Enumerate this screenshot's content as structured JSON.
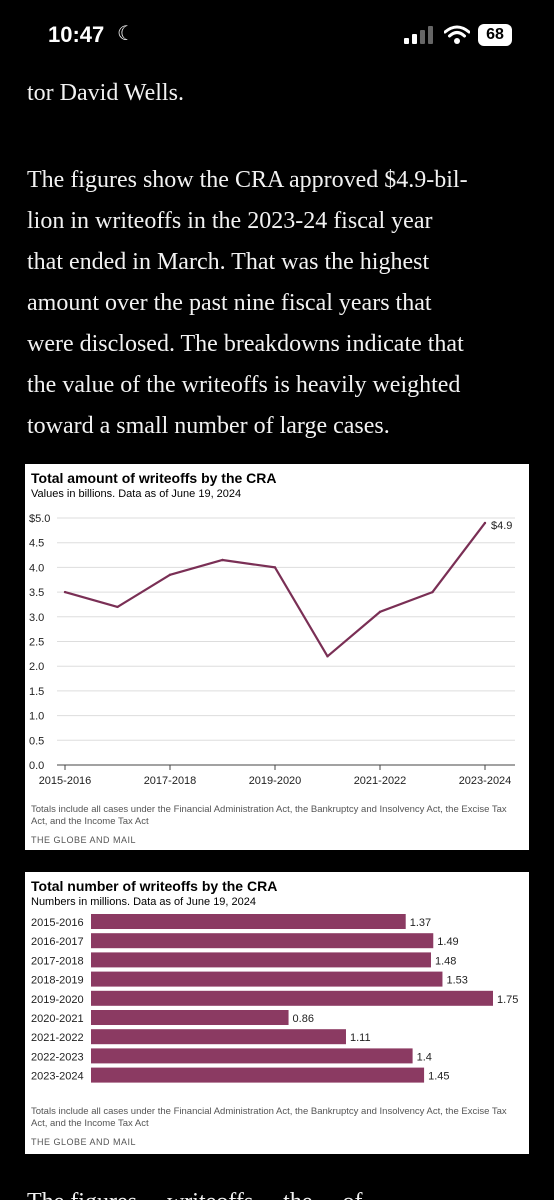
{
  "status": {
    "time": "10:47",
    "battery": "68"
  },
  "article": {
    "p1": "tor David Wells.",
    "p2_lines": [
      "The figures show the CRA approved $4.9-bil-",
      "lion in writeoffs in the 2023-24 fiscal year",
      "that ended in March. That was the highest",
      "amount over the past nine fiscal years that",
      "were disclosed. The breakdowns indicate that",
      "the value of the writeoffs is heavily weighted",
      "toward a small number of large cases."
    ],
    "next_line": "The figures ... writeoffs ... the ... of"
  },
  "chart_data": [
    {
      "type": "line",
      "title": "Total amount of writeoffs by the CRA",
      "subtitle": "Values in billions. Data as of June 19, 2024",
      "x": [
        "2015-2016",
        "2016-2017",
        "2017-2018",
        "2018-2019",
        "2019-2020",
        "2020-2021",
        "2021-2022",
        "2022-2023",
        "2023-2024"
      ],
      "x_tick_labels": [
        "2015-2016",
        "2017-2018",
        "2019-2020",
        "2021-2022",
        "2023-2024"
      ],
      "y_tick_labels": [
        "$5.0",
        "4.5",
        "4.0",
        "3.5",
        "3.0",
        "2.5",
        "2.0",
        "1.5",
        "1.0",
        "0.5",
        "0.0"
      ],
      "series": [
        {
          "values": [
            3.5,
            3.2,
            3.85,
            4.15,
            4.0,
            2.2,
            3.1,
            3.5,
            4.9
          ]
        }
      ],
      "annotation": "$4.9",
      "ylim": [
        0,
        5
      ],
      "color": "#7a2f55",
      "grid": true,
      "notes": "Totals include all cases under the Financial Administration Act, the Bankruptcy and Insolvency Act, the Excise Tax Act, and the Income Tax Act",
      "source": "THE GLOBE AND MAIL"
    },
    {
      "type": "bar",
      "orientation": "horizontal",
      "title": "Total number of writeoffs by the CRA",
      "subtitle": "Numbers in millions. Data as of June 19, 2024",
      "categories": [
        "2015-2016",
        "2016-2017",
        "2017-2018",
        "2018-2019",
        "2019-2020",
        "2020-2021",
        "2021-2022",
        "2022-2023",
        "2023-2024"
      ],
      "values": [
        1.37,
        1.49,
        1.48,
        1.53,
        1.75,
        0.86,
        1.11,
        1.4,
        1.45
      ],
      "value_labels": [
        "1.37",
        "1.49",
        "1.48",
        "1.53",
        "1.75",
        "0.86",
        "1.11",
        "1.4",
        "1.45"
      ],
      "xlim": [
        0,
        1.75
      ],
      "color": "#8b3a62",
      "notes": "Totals include all cases under the Financial Administration Act, the Bankruptcy and Insolvency Act, the Excise Tax Act, and the Income Tax Act",
      "source": "THE GLOBE AND MAIL"
    }
  ]
}
